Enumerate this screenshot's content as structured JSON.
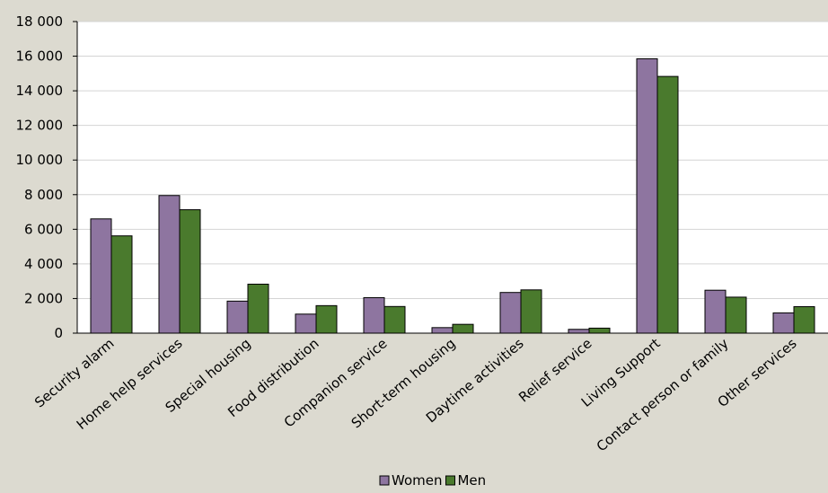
{
  "chart_data": {
    "type": "bar",
    "title": "",
    "xlabel": "",
    "ylabel": "",
    "categories": [
      "Security alarm",
      "Home help services",
      "Special housing",
      "Food distribution",
      "Companion service",
      "Short-term housing",
      "Daytime activities",
      "Relief service",
      "Living Support",
      "Contact person or family",
      "Other services"
    ],
    "series": [
      {
        "name": "Women",
        "color": "#8e75a0",
        "values": [
          6600,
          7950,
          1850,
          1100,
          2050,
          320,
          2350,
          220,
          15850,
          2480,
          1170
        ]
      },
      {
        "name": "Men",
        "color": "#4a7a2d",
        "values": [
          5620,
          7130,
          2830,
          1590,
          1540,
          510,
          2500,
          290,
          14830,
          2080,
          1530
        ]
      }
    ],
    "ylim": [
      0,
      18000
    ],
    "yticks": [
      0,
      2000,
      4000,
      6000,
      8000,
      10000,
      12000,
      14000,
      16000,
      18000
    ],
    "ytick_labels": [
      "0",
      "2 000",
      "4 000",
      "6 000",
      "8 000",
      "10 000",
      "12 000",
      "14 000",
      "16 000",
      "18 000"
    ],
    "grid": true,
    "legend_position": "bottom"
  }
}
